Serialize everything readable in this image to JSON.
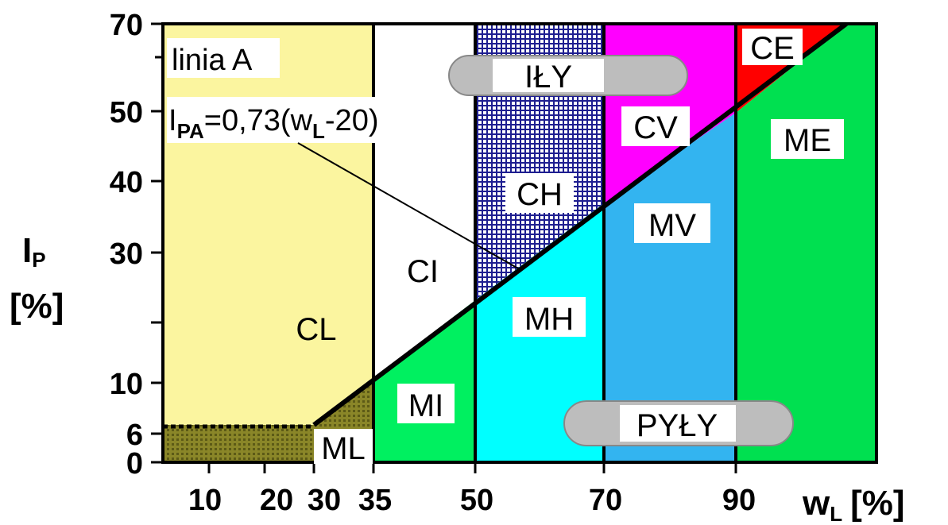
{
  "chart_data": {
    "type": "plasticity_chart",
    "x_label_main": "w",
    "x_label_sub": "L",
    "x_unit": "[%]",
    "y_label_main": "I",
    "y_label_sub": "P",
    "y_unit": "[%]",
    "x_ticks": [
      "10",
      "20",
      "30",
      "35",
      "50",
      "70",
      "90"
    ],
    "y_ticks": [
      "0",
      "6",
      "10",
      "30",
      "40",
      "50",
      "70"
    ],
    "a_line_title": "linia A",
    "a_line_formula": {
      "lhs": "I",
      "lhs_sub": "PA",
      "mid": "=0,73(w",
      "mid_sub": "L",
      "rhs": "-20)"
    },
    "a_line": {
      "slope": 0.73,
      "intercept_wl": 20
    },
    "zone_boundaries_wl": [
      35,
      50,
      70,
      90
    ],
    "groups": {
      "clays": "IŁY",
      "silts": "PYŁY"
    },
    "zones": [
      {
        "code": "CL",
        "color": "#fbf59f"
      },
      {
        "code": "CI",
        "color": "#ffffff"
      },
      {
        "code": "CH",
        "color": "#2323a0"
      },
      {
        "code": "CV",
        "color": "#ff00ff"
      },
      {
        "code": "CE",
        "color": "#ff0000"
      },
      {
        "code": "ML",
        "color": "#7d7a20"
      },
      {
        "code": "MI",
        "color": "#00f060"
      },
      {
        "code": "MH",
        "color": "#00ffff"
      },
      {
        "code": "MV",
        "color": "#33b4f0"
      },
      {
        "code": "ME",
        "color": "#00e050"
      }
    ]
  }
}
